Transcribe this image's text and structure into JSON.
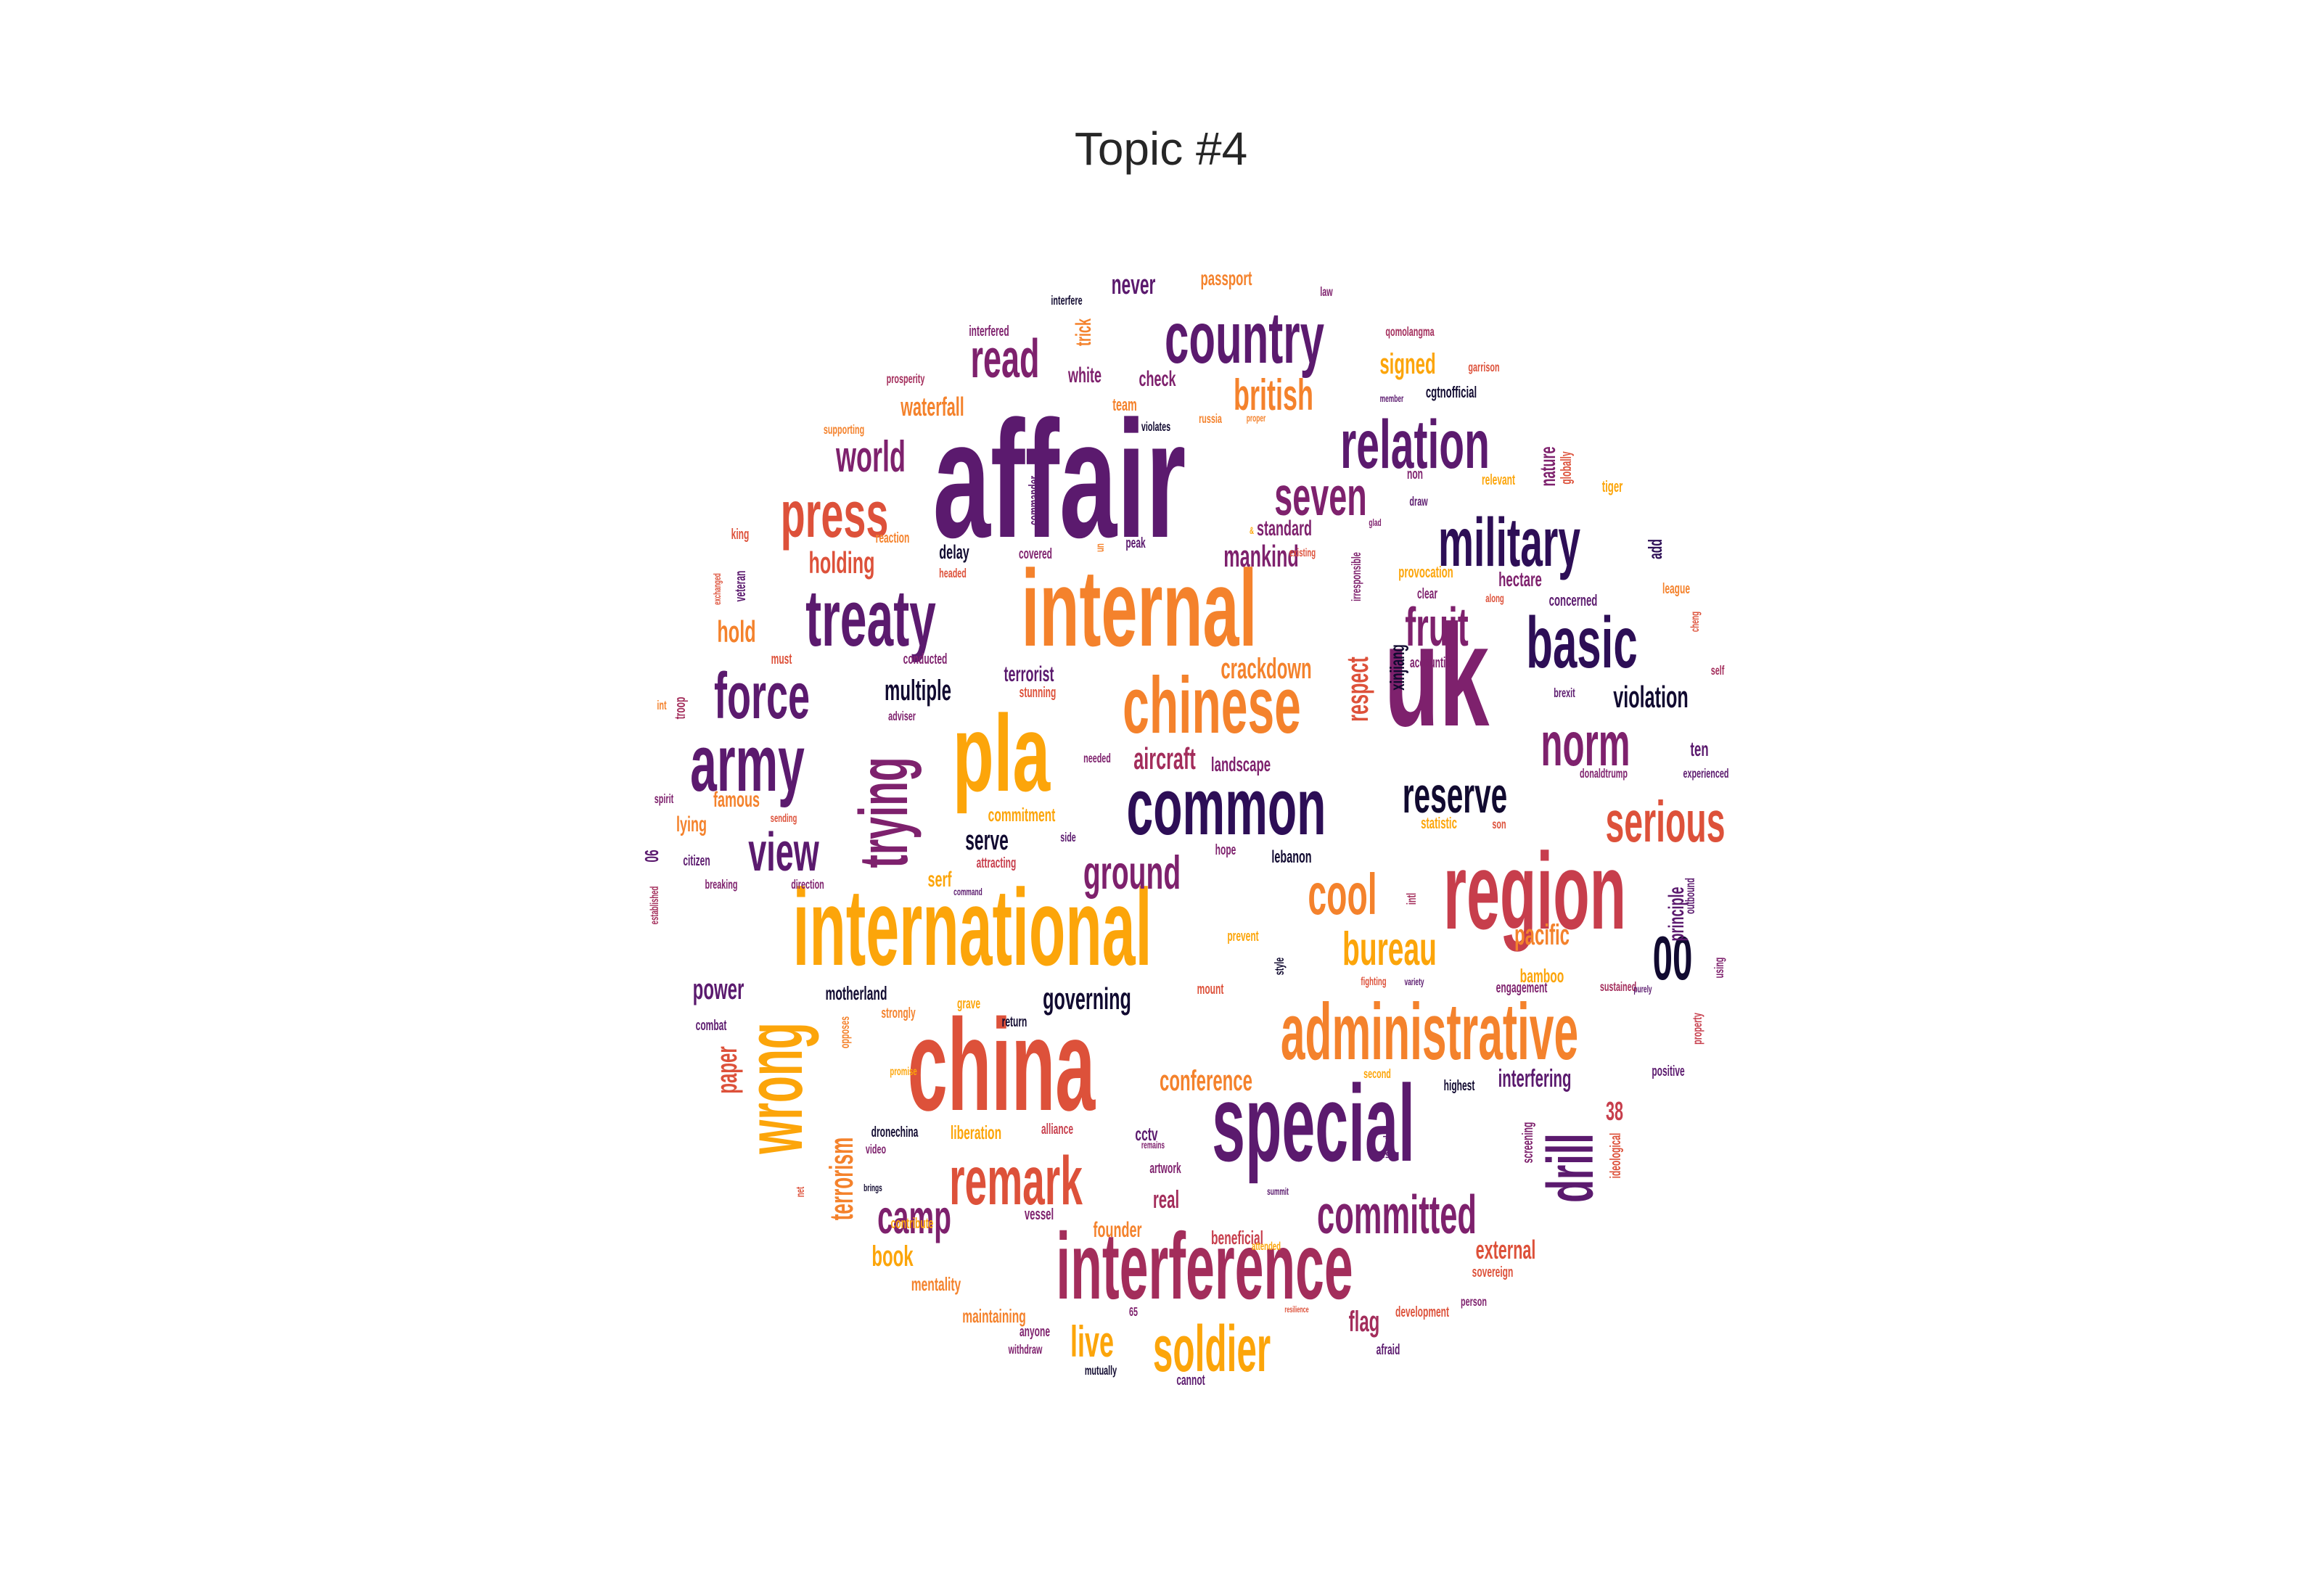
{
  "title": "Topic #4",
  "palette": [
    "#fca50a",
    "#f4822c",
    "#dd513a",
    "#c73e4c",
    "#a32d5b",
    "#7e216d",
    "#5b1a6e",
    "#2d0e56",
    "#110a30"
  ],
  "words": [
    {
      "text": "affair",
      "color": "#5b1a6e"
    },
    {
      "text": "internal",
      "color": "#f4822c"
    },
    {
      "text": "uk",
      "color": "#7e216d"
    },
    {
      "text": "international",
      "color": "#fca50a"
    },
    {
      "text": "china",
      "color": "#dd513a"
    },
    {
      "text": "special",
      "color": "#5b1a6e"
    },
    {
      "text": "region",
      "color": "#c73e4c"
    },
    {
      "text": "pla",
      "color": "#fca50a"
    },
    {
      "text": "interference",
      "color": "#a32d5b"
    },
    {
      "text": "administrative",
      "color": "#f4822c"
    },
    {
      "text": "chinese",
      "color": "#f4822c"
    },
    {
      "text": "country",
      "color": "#5b1a6e"
    },
    {
      "text": "military",
      "color": "#2d0e56"
    },
    {
      "text": "treaty",
      "color": "#5b1a6e"
    },
    {
      "text": "common",
      "color": "#2d0e56"
    },
    {
      "text": "army",
      "color": "#5b1a6e"
    },
    {
      "text": "basic",
      "color": "#2d0e56"
    },
    {
      "text": "relation",
      "color": "#5b1a6e"
    },
    {
      "text": "press",
      "color": "#dd513a"
    },
    {
      "text": "remark",
      "color": "#dd513a"
    },
    {
      "text": "force",
      "color": "#5b1a6e"
    },
    {
      "text": "norm",
      "color": "#7e216d"
    },
    {
      "text": "serious",
      "color": "#dd513a"
    },
    {
      "text": "soldier",
      "color": "#fca50a"
    },
    {
      "text": "committed",
      "color": "#7e216d"
    },
    {
      "text": "wrong",
      "color": "#fca50a"
    },
    {
      "text": "trying",
      "color": "#7e216d"
    },
    {
      "text": "read",
      "color": "#7e216d"
    },
    {
      "text": "seven",
      "color": "#7e216d"
    },
    {
      "text": "fruit",
      "color": "#7e216d"
    },
    {
      "text": "reserve",
      "color": "#110a30"
    },
    {
      "text": "view",
      "color": "#5b1a6e"
    },
    {
      "text": "cool",
      "color": "#f4822c"
    },
    {
      "text": "drill",
      "color": "#5b1a6e"
    },
    {
      "text": "british",
      "color": "#f4822c"
    },
    {
      "text": "world",
      "color": "#7e216d"
    },
    {
      "text": "00",
      "color": "#110a30"
    },
    {
      "text": "ground",
      "color": "#7e216d"
    },
    {
      "text": "bureau",
      "color": "#fca50a"
    },
    {
      "text": "camp",
      "color": "#7e216d"
    },
    {
      "text": "live",
      "color": "#fca50a"
    },
    {
      "text": "terrorism",
      "color": "#f4822c"
    },
    {
      "text": "holding",
      "color": "#dd513a"
    },
    {
      "text": "multiple",
      "color": "#110a30"
    },
    {
      "text": "hold",
      "color": "#f4822c"
    },
    {
      "text": "mankind",
      "color": "#7e216d"
    },
    {
      "text": "respect",
      "color": "#dd513a"
    },
    {
      "text": "crackdown",
      "color": "#f4822c"
    },
    {
      "text": "aircraft",
      "color": "#a32d5b"
    },
    {
      "text": "violation",
      "color": "#110a30"
    },
    {
      "text": "governing",
      "color": "#110a30"
    },
    {
      "text": "conference",
      "color": "#f4822c"
    },
    {
      "text": "pacific",
      "color": "#f4822c"
    },
    {
      "text": "power",
      "color": "#5b1a6e"
    },
    {
      "text": "paper",
      "color": "#dd513a"
    },
    {
      "text": "book",
      "color": "#fca50a"
    },
    {
      "text": "flag",
      "color": "#a32d5b"
    },
    {
      "text": "never",
      "color": "#5b1a6e"
    },
    {
      "text": "waterfall",
      "color": "#f4822c"
    },
    {
      "text": "signed",
      "color": "#fca50a"
    },
    {
      "text": "terrorist",
      "color": "#5b1a6e"
    },
    {
      "text": "serve",
      "color": "#110a30"
    },
    {
      "text": "external",
      "color": "#dd513a"
    },
    {
      "text": "interfering",
      "color": "#5b1a6e"
    },
    {
      "text": "hectare",
      "color": "#7e216d"
    },
    {
      "text": "standard",
      "color": "#7e216d"
    },
    {
      "text": "famous",
      "color": "#f4822c"
    },
    {
      "text": "check",
      "color": "#7e216d"
    },
    {
      "text": "white",
      "color": "#7e216d"
    },
    {
      "text": "real",
      "color": "#a32d5b"
    },
    {
      "text": "founder",
      "color": "#f4822c"
    },
    {
      "text": "landscape",
      "color": "#7e216d"
    },
    {
      "text": "xinjiang",
      "color": "#110a30"
    },
    {
      "text": "passport",
      "color": "#f4822c"
    },
    {
      "text": "delay",
      "color": "#110a30"
    },
    {
      "text": "motherland",
      "color": "#110a30"
    },
    {
      "text": "commitment",
      "color": "#fca50a"
    },
    {
      "text": "lebanon",
      "color": "#110a30"
    },
    {
      "text": "bamboo",
      "color": "#fca50a"
    },
    {
      "text": "principle",
      "color": "#5b1a6e"
    },
    {
      "text": "ten",
      "color": "#5b1a6e"
    },
    {
      "text": "38",
      "color": "#c73e4c"
    },
    {
      "text": "mentality",
      "color": "#f4822c"
    },
    {
      "text": "maintaining",
      "color": "#f4822c"
    },
    {
      "text": "beneficial",
      "color": "#c73e4c"
    },
    {
      "text": "liberation",
      "color": "#fca50a"
    },
    {
      "text": "cctv",
      "color": "#5b1a6e"
    },
    {
      "text": "serf",
      "color": "#fca50a"
    },
    {
      "text": "lying",
      "color": "#f4822c"
    },
    {
      "text": "nature",
      "color": "#7e216d"
    },
    {
      "text": "trick",
      "color": "#f4822c"
    },
    {
      "text": "team",
      "color": "#f4822c"
    },
    {
      "text": "add",
      "color": "#2d0e56"
    },
    {
      "text": "citizen",
      "color": "#5b1a6e"
    },
    {
      "text": "combat",
      "color": "#5b1a6e"
    },
    {
      "text": "06",
      "color": "#5b1a6e"
    },
    {
      "text": "interfered",
      "color": "#7e216d"
    },
    {
      "text": "interfere",
      "color": "#110a30"
    },
    {
      "text": "law",
      "color": "#7e216d"
    },
    {
      "text": "qomolangma",
      "color": "#a32d5b"
    },
    {
      "text": "prosperity",
      "color": "#a32d5b"
    },
    {
      "text": "garrison",
      "color": "#dd513a"
    },
    {
      "text": "member",
      "color": "#5b1a6e"
    },
    {
      "text": "cgtnofficial",
      "color": "#110a30"
    },
    {
      "text": "supporting",
      "color": "#f4822c"
    },
    {
      "text": "violates",
      "color": "#110a30"
    },
    {
      "text": "russia",
      "color": "#f4822c"
    },
    {
      "text": "proper",
      "color": "#f4822c"
    },
    {
      "text": "globally",
      "color": "#dd513a"
    },
    {
      "text": "tiger",
      "color": "#fca50a"
    },
    {
      "text": "non",
      "color": "#7e216d"
    },
    {
      "text": "relevant",
      "color": "#fca50a"
    },
    {
      "text": "commander",
      "color": "#5b1a6e"
    },
    {
      "text": "draw",
      "color": "#5b1a6e"
    },
    {
      "text": "glad",
      "color": "#7e216d"
    },
    {
      "text": "king",
      "color": "#dd513a"
    },
    {
      "text": "reaction",
      "color": "#f4822c"
    },
    {
      "text": "peak",
      "color": "#5b1a6e"
    },
    {
      "text": "un",
      "color": "#f4822c"
    },
    {
      "text": "covered",
      "color": "#7e216d"
    },
    {
      "text": "existing",
      "color": "#dd513a"
    },
    {
      "text": "irresponsible",
      "color": "#7e216d"
    },
    {
      "text": "provocation",
      "color": "#fca50a"
    },
    {
      "text": "veteran",
      "color": "#5b1a6e"
    },
    {
      "text": "exchanged",
      "color": "#dd513a"
    },
    {
      "text": "headed",
      "color": "#dd513a"
    },
    {
      "text": "clear",
      "color": "#7e216d"
    },
    {
      "text": "along",
      "color": "#dd513a"
    },
    {
      "text": "concerned",
      "color": "#5b1a6e"
    },
    {
      "text": "league",
      "color": "#f4822c"
    },
    {
      "text": "cheng",
      "color": "#dd513a"
    },
    {
      "text": "must",
      "color": "#dd513a"
    },
    {
      "text": "conducted",
      "color": "#7e216d"
    },
    {
      "text": "accounting",
      "color": "#7e216d"
    },
    {
      "text": "self",
      "color": "#a32d5b"
    },
    {
      "text": "troop",
      "color": "#a32d5b"
    },
    {
      "text": "stunning",
      "color": "#dd513a"
    },
    {
      "text": "brexit",
      "color": "#5b1a6e"
    },
    {
      "text": "int",
      "color": "#f4822c"
    },
    {
      "text": "adviser",
      "color": "#7e216d"
    },
    {
      "text": "experienced",
      "color": "#5b1a6e"
    },
    {
      "text": "needed",
      "color": "#7e216d"
    },
    {
      "text": "donaldtrump",
      "color": "#7e216d"
    },
    {
      "text": "spirit",
      "color": "#7e216d"
    },
    {
      "text": "sending",
      "color": "#dd513a"
    },
    {
      "text": "statistic",
      "color": "#fca50a"
    },
    {
      "text": "son",
      "color": "#dd513a"
    },
    {
      "text": "side",
      "color": "#5b1a6e"
    },
    {
      "text": "attracting",
      "color": "#c73e4c"
    },
    {
      "text": "hope",
      "color": "#7e216d"
    },
    {
      "text": "outbound",
      "color": "#5b1a6e"
    },
    {
      "text": "established",
      "color": "#a32d5b"
    },
    {
      "text": "breaking",
      "color": "#7e216d"
    },
    {
      "text": "direction",
      "color": "#7e216d"
    },
    {
      "text": "command",
      "color": "#5b1a6e"
    },
    {
      "text": "intl",
      "color": "#a32d5b"
    },
    {
      "text": "prevent",
      "color": "#fca50a"
    },
    {
      "text": "style",
      "color": "#110a30"
    },
    {
      "text": "using",
      "color": "#7e216d"
    },
    {
      "text": "fighting",
      "color": "#dd513a"
    },
    {
      "text": "variety",
      "color": "#5b1a6e"
    },
    {
      "text": "engagement",
      "color": "#7e216d"
    },
    {
      "text": "sustained",
      "color": "#a32d5b"
    },
    {
      "text": "purely",
      "color": "#5b1a6e"
    },
    {
      "text": "mount",
      "color": "#dd513a"
    },
    {
      "text": "grave",
      "color": "#fca50a"
    },
    {
      "text": "return",
      "color": "#110a30"
    },
    {
      "text": "strongly",
      "color": "#f4822c"
    },
    {
      "text": "opposes",
      "color": "#f4822c"
    },
    {
      "text": "property",
      "color": "#c73e4c"
    },
    {
      "text": "promise",
      "color": "#fca50a"
    },
    {
      "text": "second",
      "color": "#fca50a"
    },
    {
      "text": "highest",
      "color": "#110a30"
    },
    {
      "text": "positive",
      "color": "#5b1a6e"
    },
    {
      "text": "screening",
      "color": "#7e216d"
    },
    {
      "text": "ideological",
      "color": "#dd513a"
    },
    {
      "text": "dronechina",
      "color": "#110a30"
    },
    {
      "text": "alliance",
      "color": "#c73e4c"
    },
    {
      "text": "video",
      "color": "#7e216d"
    },
    {
      "text": "remains",
      "color": "#7e216d"
    },
    {
      "text": "joined",
      "color": "#5b1a6e"
    },
    {
      "text": "artwork",
      "color": "#7e216d"
    },
    {
      "text": "net",
      "color": "#dd513a"
    },
    {
      "text": "brings",
      "color": "#110a30"
    },
    {
      "text": "summit",
      "color": "#5b1a6e"
    },
    {
      "text": "vessel",
      "color": "#7e216d"
    },
    {
      "text": "contribute",
      "color": "#fca50a"
    },
    {
      "text": "sovereign",
      "color": "#dd513a"
    },
    {
      "text": "person",
      "color": "#7e216d"
    },
    {
      "text": "65",
      "color": "#7e216d"
    },
    {
      "text": "resilience",
      "color": "#dd513a"
    },
    {
      "text": "development",
      "color": "#dd513a"
    },
    {
      "text": "anyone",
      "color": "#7e216d"
    },
    {
      "text": "withdraw",
      "color": "#7e216d"
    },
    {
      "text": "afraid",
      "color": "#5b1a6e"
    },
    {
      "text": "mutually",
      "color": "#110a30"
    },
    {
      "text": "cannot",
      "color": "#5b1a6e"
    },
    {
      "text": "attended",
      "color": "#fca50a"
    },
    {
      "text": "&",
      "color": "#fca50a"
    },
    {
      "text": "l",
      "color": "#dd513a"
    }
  ]
}
